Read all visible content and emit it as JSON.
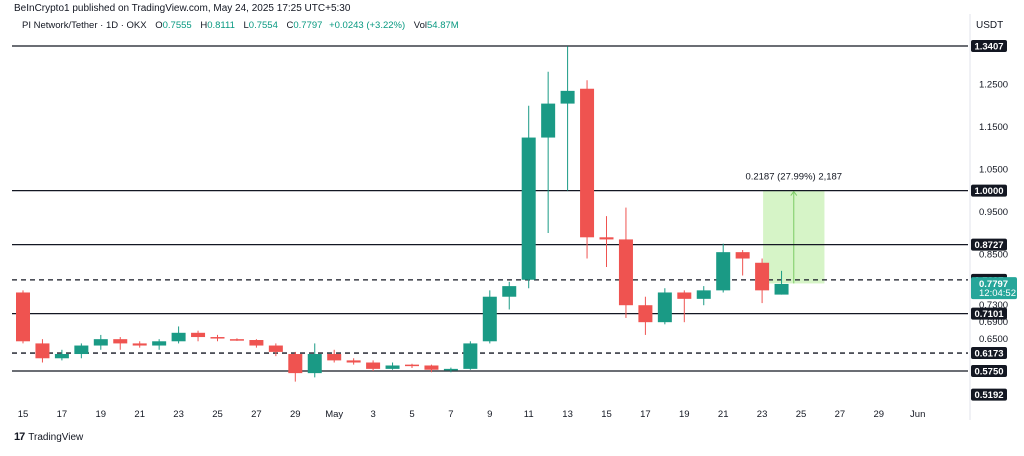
{
  "header": {
    "published": "BeInCrypto1 published on TradingView.com, May 24, 2025 17:25 UTC+5:30",
    "symbol": "PI Network/Tether · 1D · OKX",
    "o_label": "O",
    "o_value": "0.7555",
    "h_label": "H",
    "h_value": "0.8111",
    "l_label": "L",
    "l_value": "0.7554",
    "c_label": "C",
    "c_value": "0.7797",
    "change": "+0.0243 (+3.22%)",
    "vol_label": "Vol",
    "vol_value": "54.87M",
    "currency": "USDT"
  },
  "footer": {
    "logo_mark": "17",
    "logo_text": "TradingView"
  },
  "colors": {
    "up": "#26a69a",
    "up_dark": "#1a9a85",
    "down": "#ef5350",
    "level_line": "#131722",
    "measure_fill": "#c8f0b4",
    "measure_line": "#7ccc64"
  },
  "chart_data": {
    "type": "candlestick",
    "x_axis_labels": [
      "15",
      "17",
      "19",
      "21",
      "23",
      "25",
      "27",
      "29",
      "May",
      "3",
      "5",
      "7",
      "9",
      "11",
      "13",
      "15",
      "17",
      "19",
      "21",
      "23",
      "25",
      "27",
      "29",
      "Jun"
    ],
    "y_axis_ticks": [
      "1.2500",
      "1.1500",
      "1.0500",
      "0.9500",
      "0.8500",
      "0.7300",
      "0.6900",
      "0.6500"
    ],
    "candles": [
      {
        "o": 0.76,
        "h": 0.765,
        "l": 0.64,
        "c": 0.645
      },
      {
        "o": 0.64,
        "h": 0.65,
        "l": 0.595,
        "c": 0.605
      },
      {
        "o": 0.605,
        "h": 0.625,
        "l": 0.6,
        "c": 0.615
      },
      {
        "o": 0.615,
        "h": 0.64,
        "l": 0.605,
        "c": 0.635
      },
      {
        "o": 0.635,
        "h": 0.66,
        "l": 0.625,
        "c": 0.65
      },
      {
        "o": 0.65,
        "h": 0.655,
        "l": 0.625,
        "c": 0.64
      },
      {
        "o": 0.64,
        "h": 0.645,
        "l": 0.63,
        "c": 0.635
      },
      {
        "o": 0.635,
        "h": 0.65,
        "l": 0.625,
        "c": 0.645
      },
      {
        "o": 0.645,
        "h": 0.68,
        "l": 0.64,
        "c": 0.665
      },
      {
        "o": 0.665,
        "h": 0.67,
        "l": 0.645,
        "c": 0.655
      },
      {
        "o": 0.655,
        "h": 0.66,
        "l": 0.645,
        "c": 0.652
      },
      {
        "o": 0.65,
        "h": 0.652,
        "l": 0.646,
        "c": 0.648
      },
      {
        "o": 0.648,
        "h": 0.65,
        "l": 0.63,
        "c": 0.635
      },
      {
        "o": 0.635,
        "h": 0.64,
        "l": 0.61,
        "c": 0.62
      },
      {
        "o": 0.615,
        "h": 0.62,
        "l": 0.55,
        "c": 0.57
      },
      {
        "o": 0.57,
        "h": 0.64,
        "l": 0.56,
        "c": 0.615
      },
      {
        "o": 0.615,
        "h": 0.625,
        "l": 0.595,
        "c": 0.6
      },
      {
        "o": 0.6,
        "h": 0.605,
        "l": 0.59,
        "c": 0.595
      },
      {
        "o": 0.595,
        "h": 0.6,
        "l": 0.575,
        "c": 0.58
      },
      {
        "o": 0.58,
        "h": 0.595,
        "l": 0.578,
        "c": 0.588
      },
      {
        "o": 0.59,
        "h": 0.592,
        "l": 0.582,
        "c": 0.588
      },
      {
        "o": 0.588,
        "h": 0.59,
        "l": 0.572,
        "c": 0.578
      },
      {
        "o": 0.578,
        "h": 0.583,
        "l": 0.572,
        "c": 0.58
      },
      {
        "o": 0.58,
        "h": 0.645,
        "l": 0.578,
        "c": 0.64
      },
      {
        "o": 0.645,
        "h": 0.765,
        "l": 0.64,
        "c": 0.75
      },
      {
        "o": 0.75,
        "h": 0.785,
        "l": 0.72,
        "c": 0.775
      },
      {
        "o": 0.79,
        "h": 1.2,
        "l": 0.77,
        "c": 1.125
      },
      {
        "o": 1.125,
        "h": 1.28,
        "l": 0.9,
        "c": 1.205
      },
      {
        "o": 1.205,
        "h": 1.34,
        "l": 1.0,
        "c": 1.235
      },
      {
        "o": 1.24,
        "h": 1.26,
        "l": 0.84,
        "c": 0.89
      },
      {
        "o": 0.89,
        "h": 0.94,
        "l": 0.82,
        "c": 0.885
      },
      {
        "o": 0.885,
        "h": 0.96,
        "l": 0.7,
        "c": 0.73
      },
      {
        "o": 0.73,
        "h": 0.75,
        "l": 0.66,
        "c": 0.69
      },
      {
        "o": 0.69,
        "h": 0.77,
        "l": 0.685,
        "c": 0.76
      },
      {
        "o": 0.76,
        "h": 0.765,
        "l": 0.69,
        "c": 0.745
      },
      {
        "o": 0.745,
        "h": 0.775,
        "l": 0.73,
        "c": 0.765
      },
      {
        "o": 0.765,
        "h": 0.875,
        "l": 0.76,
        "c": 0.855
      },
      {
        "o": 0.855,
        "h": 0.86,
        "l": 0.8,
        "c": 0.84
      },
      {
        "o": 0.83,
        "h": 0.84,
        "l": 0.735,
        "c": 0.765
      },
      {
        "o": 0.755,
        "h": 0.811,
        "l": 0.755,
        "c": 0.78
      }
    ],
    "levels": [
      {
        "value": 1.3407,
        "label": "1.3407",
        "style": "solid"
      },
      {
        "value": 1.0,
        "label": "1.0000",
        "style": "solid"
      },
      {
        "value": 0.8727,
        "label": "0.8727",
        "style": "solid"
      },
      {
        "value": 0.7897,
        "label": "0.7897",
        "style": "dashed"
      },
      {
        "value": 0.7101,
        "label": "0.7101",
        "style": "solid"
      },
      {
        "value": 0.6173,
        "label": "0.6173",
        "style": "dashed"
      },
      {
        "value": 0.575,
        "label": "0.5750",
        "style": "solid"
      },
      {
        "value": 0.5192,
        "label": "0.5192",
        "style": "none"
      }
    ],
    "current_price": {
      "value": 0.7797,
      "label": "0.7797",
      "countdown": "12:04:52"
    },
    "measurement": {
      "from": 0.7813,
      "to": 1.0,
      "label": "0.2187 (27.99%) 2,187"
    }
  }
}
